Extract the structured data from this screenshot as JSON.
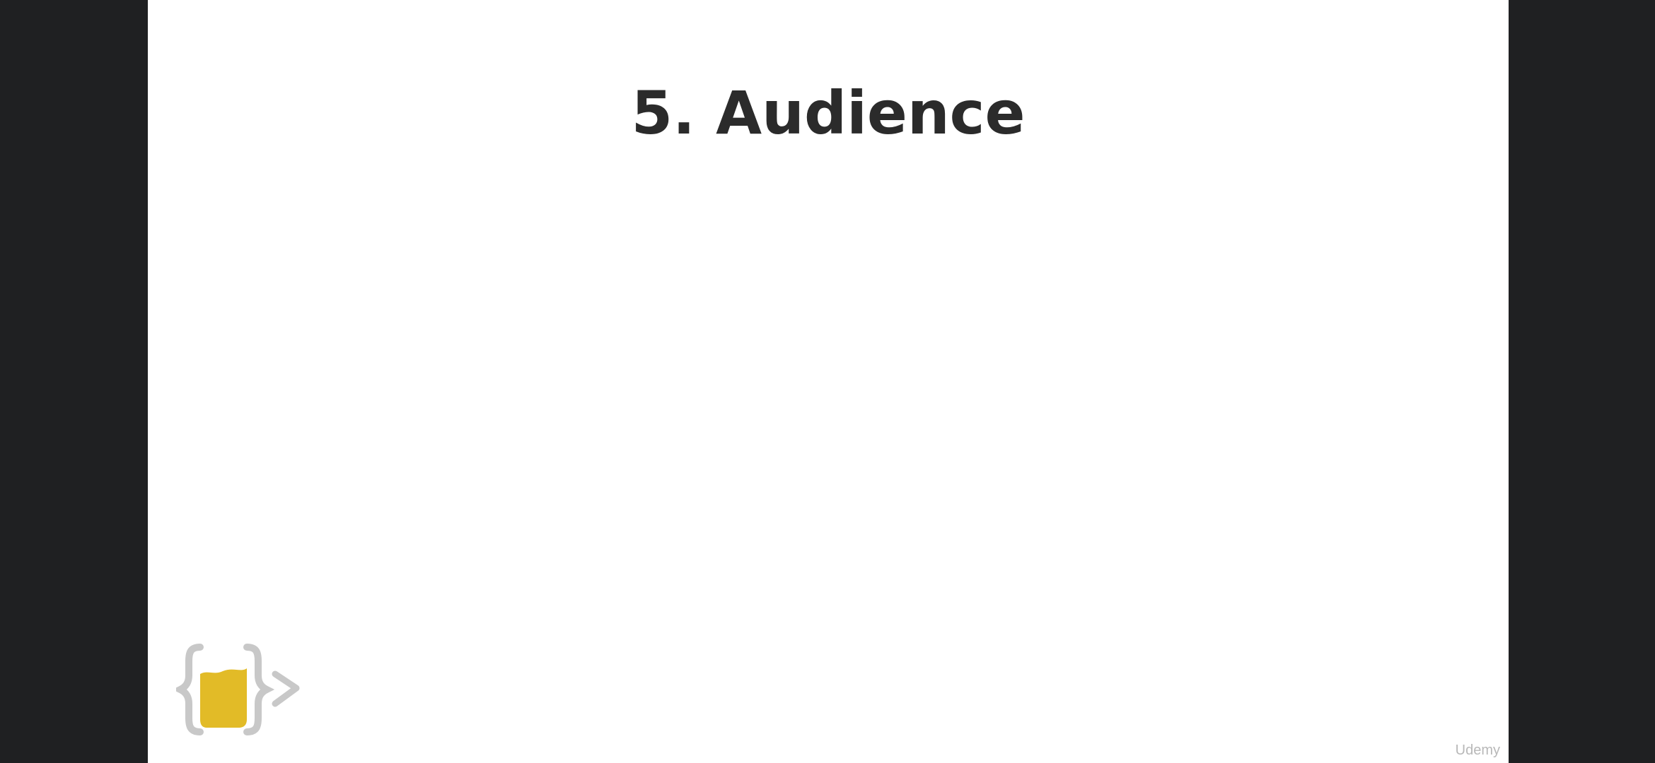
{
  "slide": {
    "title": "5. Audience"
  },
  "logo": {
    "icon": "curly-braces-cup-logo",
    "brace_color": "#c8c8c8",
    "cup_color": "#e2bb27"
  },
  "watermark": {
    "text": "Udemy"
  }
}
